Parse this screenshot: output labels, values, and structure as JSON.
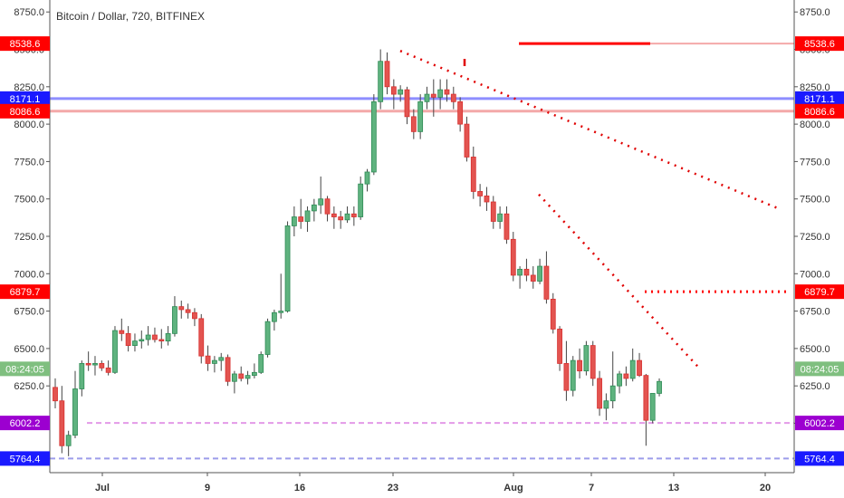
{
  "chart_data": {
    "type": "candlestick",
    "title": "Bitcoin / Dollar, 720, BITFINEX",
    "y_axis": {
      "ticks": [
        5750,
        6000,
        6250,
        6500,
        6750,
        7000,
        7250,
        7500,
        7750,
        8000,
        8250,
        8500,
        8750
      ],
      "tick_labels": [
        "5750.0",
        "6000.0",
        "6250.0",
        "6500.0",
        "6750.0",
        "7000.0",
        "7250.0",
        "7500.0",
        "7750.0",
        "8000.0",
        "8250.0",
        "8500.0",
        "8750.0"
      ],
      "range": [
        5670,
        8830
      ]
    },
    "x_axis": {
      "labels": [
        "Jul",
        "9",
        "16",
        "23",
        "Aug",
        "7",
        "13",
        "20"
      ]
    },
    "price_levels": [
      {
        "value": 8538.6,
        "label": "8538.6",
        "color": "#ff0000",
        "style": "solid"
      },
      {
        "value": 8171.1,
        "label": "8171.1",
        "color": "#1a1aff",
        "style": "solid"
      },
      {
        "value": 8086.6,
        "label": "8086.6",
        "color": "#ff0000",
        "style": "solid"
      },
      {
        "value": 6879.7,
        "label": "6879.7",
        "color": "#ff0000",
        "style": "dotted"
      },
      {
        "value": 6002.2,
        "label": "6002.2",
        "color": "#9c00d0",
        "style": "dashed"
      },
      {
        "value": 5764.4,
        "label": "5764.4",
        "color": "#1a1aff",
        "style": "dashed"
      }
    ],
    "countdown_label": "08:24:05",
    "countdown_value": 6364,
    "trendlines": [
      {
        "from": [
          8490,
          0
        ],
        "to": [
          7430,
          1
        ]
      },
      {
        "from": [
          7530,
          0
        ],
        "to": [
          6370,
          1
        ]
      }
    ],
    "candles": [
      [
        6240,
        6300,
        6100,
        6150
      ],
      [
        6150,
        6250,
        5800,
        5850
      ],
      [
        5850,
        5950,
        5780,
        5920
      ],
      [
        5920,
        6350,
        5900,
        6230
      ],
      [
        6230,
        6420,
        6180,
        6400
      ],
      [
        6400,
        6480,
        6350,
        6390
      ],
      [
        6390,
        6450,
        6320,
        6400
      ],
      [
        6400,
        6420,
        6350,
        6370
      ],
      [
        6370,
        6420,
        6320,
        6340
      ],
      [
        6340,
        6650,
        6330,
        6620
      ],
      [
        6620,
        6700,
        6550,
        6600
      ],
      [
        6600,
        6650,
        6480,
        6520
      ],
      [
        6520,
        6600,
        6480,
        6550
      ],
      [
        6550,
        6620,
        6500,
        6560
      ],
      [
        6560,
        6650,
        6520,
        6590
      ],
      [
        6590,
        6640,
        6540,
        6560
      ],
      [
        6560,
        6630,
        6500,
        6550
      ],
      [
        6550,
        6650,
        6520,
        6600
      ],
      [
        6600,
        6850,
        6580,
        6780
      ],
      [
        6780,
        6820,
        6700,
        6760
      ],
      [
        6760,
        6800,
        6700,
        6740
      ],
      [
        6740,
        6770,
        6650,
        6700
      ],
      [
        6700,
        6730,
        6400,
        6450
      ],
      [
        6450,
        6520,
        6350,
        6400
      ],
      [
        6400,
        6450,
        6340,
        6420
      ],
      [
        6420,
        6470,
        6350,
        6440
      ],
      [
        6440,
        6460,
        6250,
        6280
      ],
      [
        6280,
        6350,
        6200,
        6330
      ],
      [
        6330,
        6380,
        6280,
        6300
      ],
      [
        6300,
        6350,
        6260,
        6320
      ],
      [
        6320,
        6400,
        6300,
        6340
      ],
      [
        6340,
        6480,
        6330,
        6460
      ],
      [
        6460,
        6700,
        6440,
        6680
      ],
      [
        6680,
        6760,
        6620,
        6740
      ],
      [
        6740,
        7000,
        6700,
        6750
      ],
      [
        6750,
        7350,
        6740,
        7320
      ],
      [
        7320,
        7450,
        7250,
        7380
      ],
      [
        7380,
        7500,
        7300,
        7350
      ],
      [
        7350,
        7450,
        7280,
        7420
      ],
      [
        7420,
        7500,
        7350,
        7460
      ],
      [
        7460,
        7650,
        7400,
        7500
      ],
      [
        7500,
        7520,
        7350,
        7400
      ],
      [
        7400,
        7450,
        7300,
        7380
      ],
      [
        7380,
        7420,
        7300,
        7360
      ],
      [
        7360,
        7450,
        7340,
        7400
      ],
      [
        7400,
        7450,
        7320,
        7380
      ],
      [
        7380,
        7650,
        7360,
        7600
      ],
      [
        7600,
        7700,
        7550,
        7680
      ],
      [
        7680,
        8200,
        7660,
        8150
      ],
      [
        8150,
        8500,
        8100,
        8420
      ],
      [
        8420,
        8480,
        8200,
        8250
      ],
      [
        8250,
        8300,
        8100,
        8200
      ],
      [
        8200,
        8260,
        8150,
        8230
      ],
      [
        8230,
        8250,
        8000,
        8050
      ],
      [
        8050,
        8100,
        7900,
        7950
      ],
      [
        7950,
        8200,
        7900,
        8150
      ],
      [
        8150,
        8250,
        8100,
        8200
      ],
      [
        8200,
        8300,
        8050,
        8180
      ],
      [
        8180,
        8300,
        8100,
        8230
      ],
      [
        8230,
        8300,
        8150,
        8200
      ],
      [
        8200,
        8250,
        8100,
        8150
      ],
      [
        8150,
        8180,
        7950,
        8000
      ],
      [
        8000,
        8050,
        7750,
        7780
      ],
      [
        7780,
        7850,
        7500,
        7550
      ],
      [
        7550,
        7600,
        7450,
        7520
      ],
      [
        7520,
        7580,
        7420,
        7480
      ],
      [
        7480,
        7520,
        7300,
        7350
      ],
      [
        7350,
        7450,
        7300,
        7400
      ],
      [
        7400,
        7450,
        7200,
        7230
      ],
      [
        7230,
        7280,
        6950,
        6990
      ],
      [
        6990,
        7050,
        6900,
        7030
      ],
      [
        7030,
        7100,
        6950,
        6990
      ],
      [
        6990,
        7050,
        6900,
        6950
      ],
      [
        6950,
        7100,
        6930,
        7050
      ],
      [
        7050,
        7150,
        6800,
        6830
      ],
      [
        6830,
        6870,
        6600,
        6630
      ],
      [
        6630,
        6650,
        6350,
        6400
      ],
      [
        6400,
        6550,
        6150,
        6220
      ],
      [
        6220,
        6450,
        6180,
        6420
      ],
      [
        6420,
        6500,
        6300,
        6350
      ],
      [
        6350,
        6550,
        6320,
        6520
      ],
      [
        6520,
        6550,
        6250,
        6300
      ],
      [
        6300,
        6350,
        6050,
        6100
      ],
      [
        6100,
        6200,
        6020,
        6150
      ],
      [
        6150,
        6480,
        6100,
        6250
      ],
      [
        6250,
        6350,
        6200,
        6330
      ],
      [
        6330,
        6380,
        6250,
        6300
      ],
      [
        6300,
        6500,
        6280,
        6420
      ],
      [
        6420,
        6470,
        6310,
        6320
      ],
      [
        6320,
        6330,
        5850,
        6020
      ],
      [
        6020,
        6200,
        6000,
        6200
      ],
      [
        6200,
        6300,
        6180,
        6280
      ]
    ]
  }
}
